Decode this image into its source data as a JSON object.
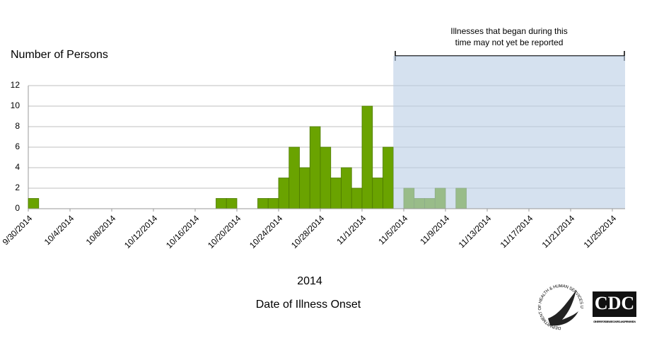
{
  "chart_data": {
    "type": "bar",
    "ylabel": "Number of Persons",
    "xlabel_year": "2014",
    "xlabel": "Date of Illness Onset",
    "annotation": [
      "Illnesses that began during this",
      "time may not yet be reported"
    ],
    "categories": [
      "9/30/2014",
      null,
      null,
      null,
      "10/4/2014",
      null,
      null,
      null,
      "10/8/2014",
      null,
      null,
      null,
      "10/12/2014",
      null,
      null,
      null,
      "10/16/2014",
      null,
      null,
      null,
      "10/20/2014",
      null,
      null,
      null,
      "10/24/2014",
      null,
      null,
      null,
      "10/28/2014",
      null,
      null,
      null,
      "11/1/2014",
      null,
      null,
      null,
      "11/5/2014",
      null,
      null,
      null,
      "11/9/2014",
      null,
      null,
      null,
      "11/13/2014",
      null,
      null,
      null,
      "11/17/2014",
      null,
      null,
      null,
      "11/21/2014",
      null,
      null,
      null,
      "11/25/2014"
    ],
    "values": [
      1,
      0,
      0,
      0,
      0,
      0,
      0,
      0,
      0,
      0,
      0,
      0,
      0,
      0,
      0,
      0,
      0,
      0,
      1,
      1,
      0,
      0,
      1,
      1,
      3,
      6,
      4,
      8,
      6,
      3,
      4,
      2,
      10,
      3,
      6,
      0,
      2,
      1,
      1,
      2,
      0,
      2,
      0,
      0,
      0,
      0,
      0,
      0,
      0,
      0,
      0,
      0,
      0,
      0,
      0,
      0,
      0
    ],
    "color": "#6aa300",
    "ylim": [
      0,
      12
    ],
    "yticks": [
      0,
      2,
      4,
      6,
      8,
      10,
      12
    ],
    "grid": true
  },
  "logos": {
    "hhs": "DEPARTMENT OF HEALTH & HUMAN SERVICES USA",
    "cdc": "CDC",
    "cdc_tagline": "CENTERS FOR DISEASE CONTROL AND PREVENTION"
  }
}
